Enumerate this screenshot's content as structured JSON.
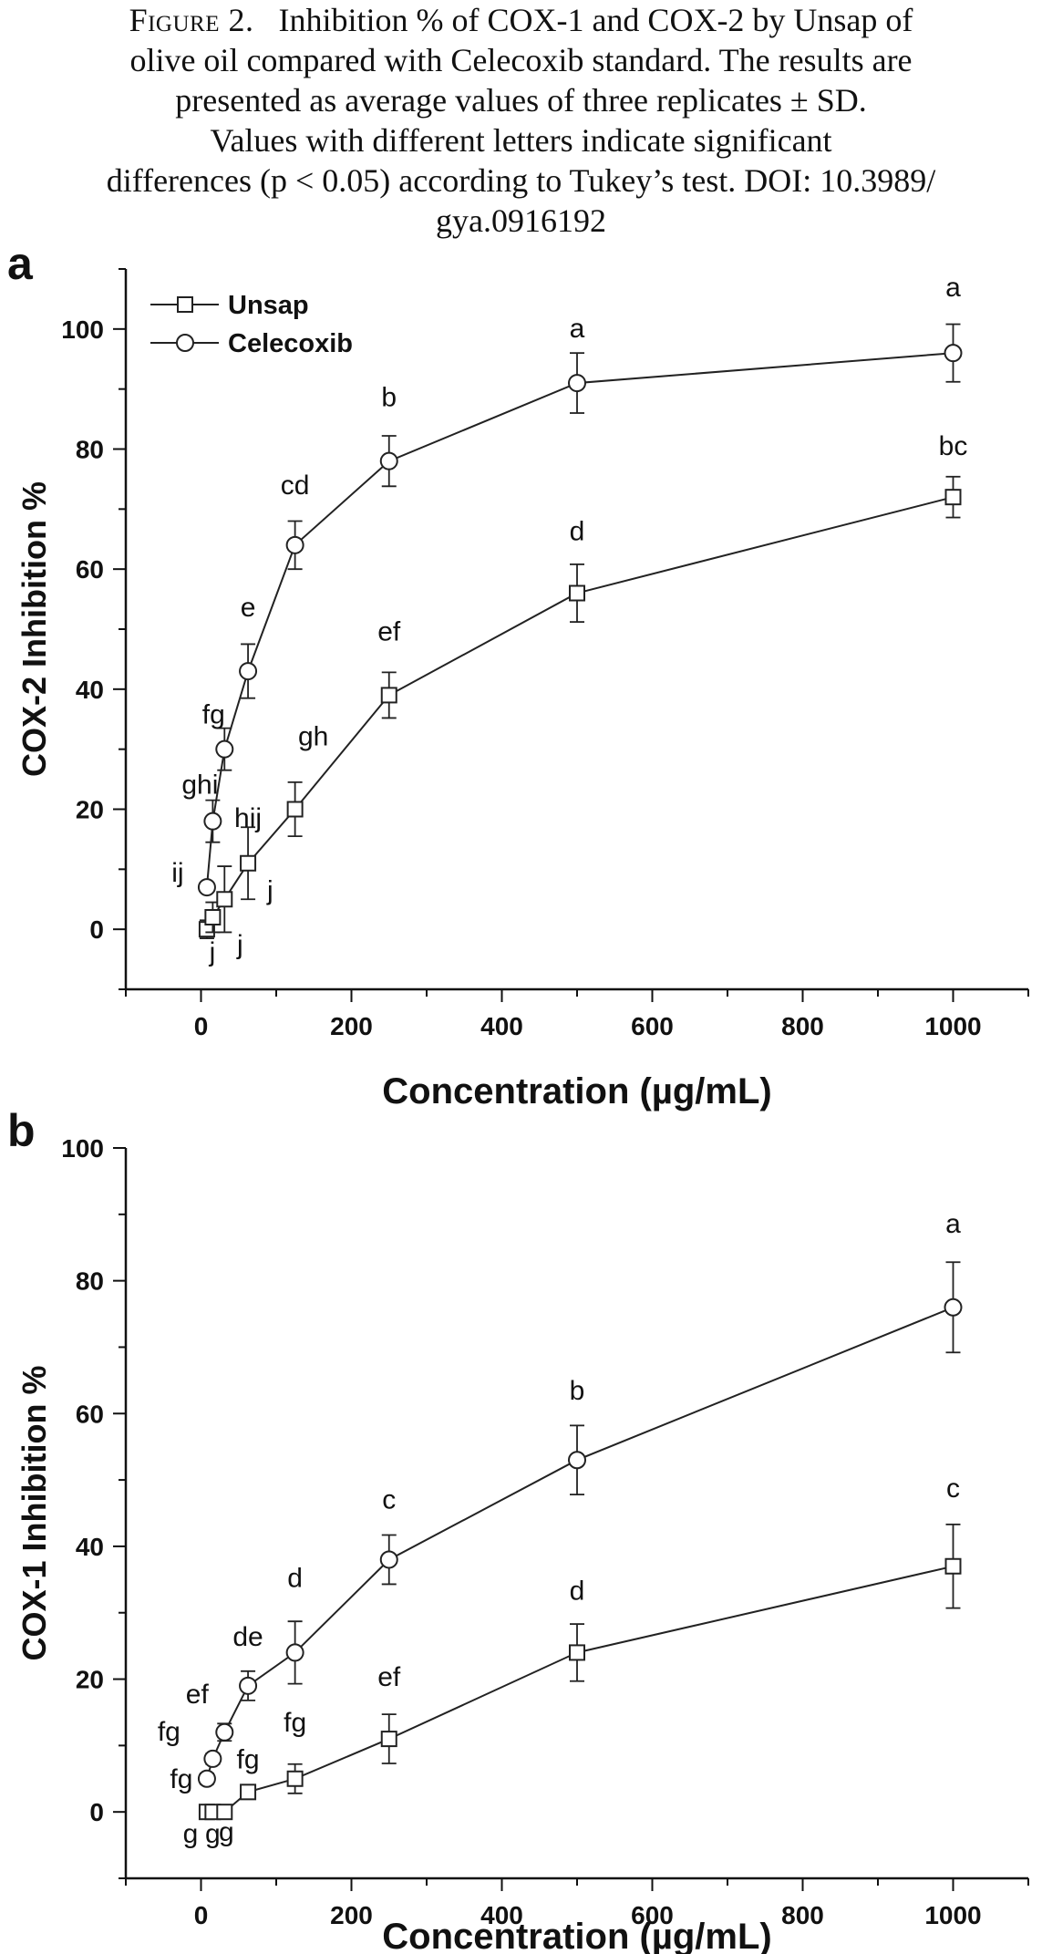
{
  "caption": {
    "label": "Figure 2.",
    "lines": [
      "Inhibition % of COX-1 and COX-2 by Unsap of",
      "olive oil compared with Celecoxib standard. The results are",
      "presented as average values of three replicates ± SD.",
      "Values with different letters indicate significant",
      "differences (p < 0.05) according to Tukey’s test. DOI: 10.3989/",
      "gya.0916192"
    ]
  },
  "chart_data": [
    {
      "type": "line",
      "panel_label": "a",
      "xlabel": "Concentration (µg/mL)",
      "ylabel": "COX-2 Inhibition %",
      "xlim": [
        -100,
        1100
      ],
      "ylim": [
        -10,
        110
      ],
      "xticks": [
        0,
        200,
        400,
        600,
        800,
        1000
      ],
      "yticks": [
        0,
        20,
        40,
        60,
        80,
        100
      ],
      "grid": false,
      "legend": "top-left",
      "series": [
        {
          "name": "Unsap",
          "marker": "square",
          "x": [
            7.8,
            15.6,
            31.25,
            62.5,
            125,
            250,
            500,
            1000
          ],
          "y": [
            0,
            2,
            5,
            11,
            20,
            39,
            56,
            72
          ],
          "err": [
            1.5,
            2.5,
            5.5,
            6,
            4.5,
            3.8,
            4.8,
            3.4
          ],
          "letters": [
            "j",
            "j",
            "j",
            "hij",
            "gh",
            "ef",
            "d",
            "bc"
          ]
        },
        {
          "name": "Celecoxib",
          "marker": "circle",
          "x": [
            7.8,
            15.6,
            31.25,
            62.5,
            125,
            250,
            500,
            1000
          ],
          "y": [
            7,
            18,
            30,
            43,
            64,
            78,
            91,
            96
          ],
          "err": [
            0,
            3.5,
            3.5,
            4.5,
            4,
            4.2,
            5,
            4.8
          ],
          "letters": [
            "ij",
            "ghi",
            "fg",
            "e",
            "cd",
            "b",
            "a",
            "a"
          ]
        }
      ]
    },
    {
      "type": "line",
      "panel_label": "b",
      "xlabel": "Concentration (µg/mL)",
      "ylabel": "COX-1 Inhibition %",
      "xlim": [
        -100,
        1100
      ],
      "ylim": [
        -10,
        100
      ],
      "xticks": [
        0,
        200,
        400,
        600,
        800,
        1000
      ],
      "yticks": [
        0,
        20,
        40,
        60,
        80,
        100
      ],
      "grid": false,
      "series": [
        {
          "name": "Unsap",
          "marker": "square",
          "x": [
            7.8,
            15.6,
            31.25,
            62.5,
            125,
            250,
            500,
            1000
          ],
          "y": [
            0,
            0,
            0,
            3,
            5,
            11,
            24,
            37
          ],
          "err": [
            0,
            0,
            0,
            1,
            2.2,
            3.7,
            4.3,
            6.3
          ],
          "letters": [
            "g",
            "g",
            "g",
            "fg",
            "fg",
            "ef",
            "d",
            "c"
          ]
        },
        {
          "name": "Celecoxib",
          "marker": "circle",
          "x": [
            7.8,
            15.6,
            31.25,
            62.5,
            125,
            250,
            500,
            1000
          ],
          "y": [
            5,
            8,
            12,
            19,
            24,
            38,
            53,
            76
          ],
          "err": [
            0.8,
            0.8,
            1.3,
            2.2,
            4.7,
            3.7,
            5.2,
            6.8
          ],
          "letters": [
            "fg",
            "fg",
            "ef",
            "de",
            "d",
            "c",
            "b",
            "a"
          ]
        }
      ]
    }
  ]
}
